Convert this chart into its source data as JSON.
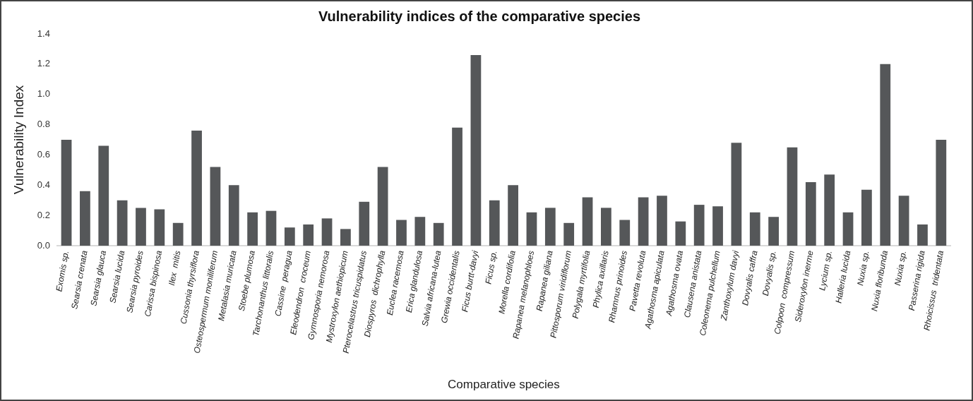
{
  "chart_data": {
    "type": "bar",
    "title": "Vulnerability indices of the comparative species",
    "xlabel": "Comparative species",
    "ylabel": "Vulnerability Index",
    "categories": [
      "Exomis sp.",
      "Searsia crenata",
      "Searsia glauca",
      "Searsia lucida",
      "Searsia pyroides",
      "Carissa bispinosa",
      "Ilex  mitis",
      "Cussonia thyrsiflora",
      "Osteospermum moniliferum",
      "Metalasia muricata",
      "Stoebe plumosa",
      "Tarchonanthus littoralis",
      "Cassine  peragua",
      "Eleodendron  croceum",
      "Gymnosporia nemorosa",
      "Mystroxylon aethiopicum",
      "Pterocelastrus tricuspidatus",
      "Diospyros  dichrophylla",
      "Euclea racemosa",
      "Erica glandulosa",
      "Salvia africana-lutea",
      "Grewia occidentalis",
      "Ficus burtt-davyi",
      "Ficus sp.",
      "Morella cordifolia",
      "Rapanea melanophloes",
      "Rapanea giliana",
      "Pittosporum viridiflorum",
      "Polygala myrtifolia",
      "Phylica axillaris",
      "Rhamnus prinoides",
      "Pavetta revoluta",
      "Agathosma apiculata",
      "Agathosma ovata",
      "Clausena anistata",
      "Coleonema pulchellum",
      "Zanthoxylum davyi",
      "Dovyalis caffra",
      "Dovyalis sp.",
      "Colpoon  compressum",
      "Sideroxylon inerme",
      "Lycium sp.",
      "Halleria lucida",
      "Nuxia sp.",
      "Nuxia floribunda",
      "Nuxia sp.",
      "Passerina rigida",
      "Rhoicissus  tridentata"
    ],
    "values": [
      0.7,
      0.36,
      0.66,
      0.3,
      0.25,
      0.24,
      0.15,
      0.76,
      0.52,
      0.4,
      0.22,
      0.23,
      0.12,
      0.14,
      0.18,
      0.11,
      0.29,
      0.52,
      0.17,
      0.19,
      0.15,
      0.78,
      1.26,
      0.3,
      0.4,
      0.22,
      0.25,
      0.15,
      0.32,
      0.25,
      0.17,
      0.32,
      0.33,
      0.16,
      0.27,
      0.26,
      0.68,
      0.22,
      0.19,
      0.65,
      0.42,
      0.47,
      0.22,
      0.37,
      1.2,
      0.33,
      0.14,
      0.7
    ],
    "color": "#555759",
    "ylim": [
      0,
      1.4
    ],
    "yticks": [
      {
        "value": 0,
        "label": "0.0"
      },
      {
        "value": 0.2,
        "label": "0.2"
      },
      {
        "value": 0.4,
        "label": "0.4"
      },
      {
        "value": 0.6,
        "label": "0.6"
      },
      {
        "value": 0.8,
        "label": "0.8"
      },
      {
        "value": 1,
        "label": "1.0"
      },
      {
        "value": 1.2,
        "label": "1.2"
      },
      {
        "value": 1.4,
        "label": "1.4"
      }
    ],
    "grid": false,
    "legend": false
  }
}
